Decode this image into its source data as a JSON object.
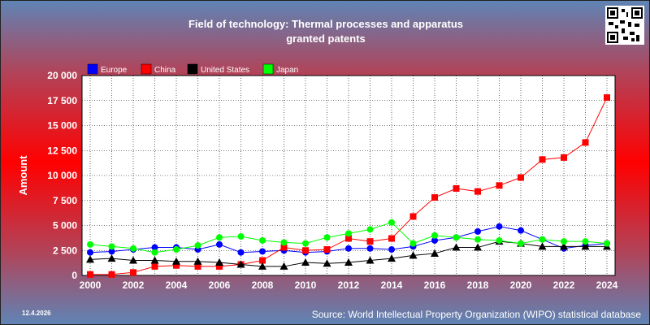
{
  "header": {
    "title_line1": "Field of technology: Thermal processes and apparatus",
    "title_line2": "granted patents"
  },
  "footer": {
    "date": "12.4.2026",
    "source": "Source: World Intellectual Property Organization (WIPO) statistical database"
  },
  "colors": {
    "Europe": "#0000ff",
    "China": "#ff0000",
    "United States": "#000000",
    "Japan": "#00ff00"
  },
  "chart_data": {
    "type": "line",
    "title": "Field of technology: Thermal processes and apparatus granted patents",
    "ylabel": "Amount",
    "xlabel": "",
    "ylim": [
      0,
      20000
    ],
    "xlim": [
      2000,
      2024
    ],
    "grid": true,
    "legend_position": "top-left",
    "x": [
      2000,
      2001,
      2002,
      2003,
      2004,
      2005,
      2006,
      2007,
      2008,
      2009,
      2010,
      2011,
      2012,
      2013,
      2014,
      2015,
      2016,
      2017,
      2018,
      2019,
      2020,
      2021,
      2022,
      2023,
      2024
    ],
    "x_ticks": [
      "2000",
      "2002",
      "2004",
      "2006",
      "2008",
      "2010",
      "2012",
      "2014",
      "2016",
      "2018",
      "2020",
      "2022",
      "2024"
    ],
    "y_ticks": [
      "0",
      "2 500",
      "5 000",
      "7 500",
      "10 000",
      "12 500",
      "15 000",
      "17 500",
      "20 000"
    ],
    "series": [
      {
        "name": "Europe",
        "marker": "circle",
        "values": [
          2300,
          2400,
          2600,
          2800,
          2800,
          2600,
          3100,
          2300,
          2400,
          2500,
          2300,
          2400,
          2700,
          2700,
          2600,
          2900,
          3500,
          3800,
          4400,
          4900,
          4500,
          3600,
          2700,
          3000,
          3200
        ]
      },
      {
        "name": "China",
        "marker": "square",
        "values": [
          100,
          100,
          300,
          900,
          1000,
          900,
          900,
          1100,
          1500,
          2800,
          2500,
          2600,
          3700,
          3400,
          3700,
          5900,
          7800,
          8700,
          8400,
          9000,
          9800,
          11600,
          11800,
          13300,
          17800
        ]
      },
      {
        "name": "United States",
        "marker": "triangle",
        "values": [
          1600,
          1700,
          1500,
          1500,
          1400,
          1400,
          1300,
          1100,
          900,
          900,
          1300,
          1200,
          1300,
          1500,
          1700,
          2000,
          2200,
          2800,
          2800,
          3400,
          3200,
          2900,
          2900,
          2900,
          2900
        ]
      },
      {
        "name": "Japan",
        "marker": "circle",
        "values": [
          3100,
          2900,
          2700,
          2300,
          2600,
          3000,
          3800,
          3900,
          3500,
          3300,
          3200,
          3800,
          4200,
          4600,
          5300,
          3200,
          4000,
          3800,
          3600,
          3500,
          3200,
          3600,
          3400,
          3400,
          3200
        ]
      }
    ]
  }
}
